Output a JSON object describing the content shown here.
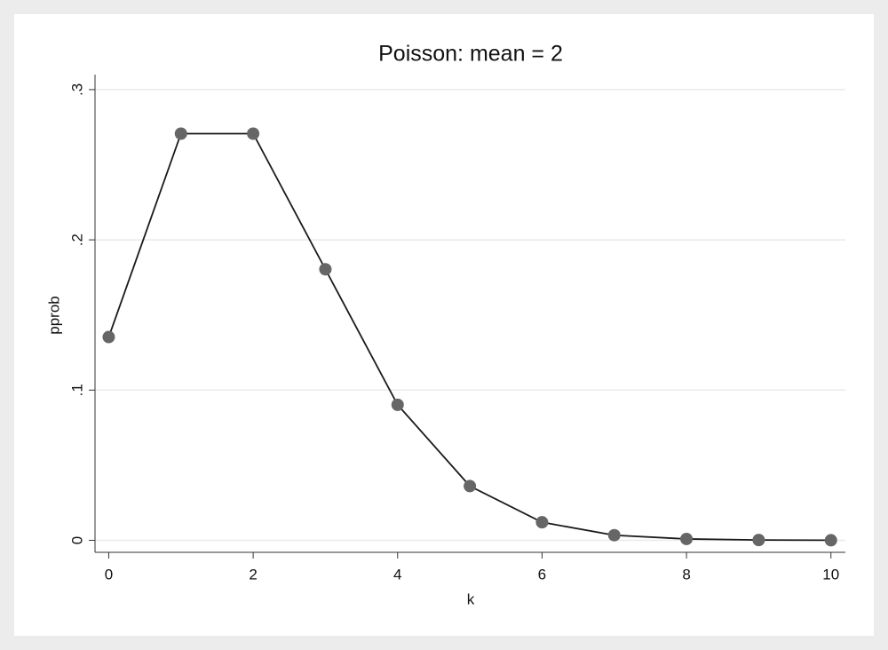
{
  "chart_data": {
    "type": "line",
    "title": "Poisson: mean = 2",
    "x_label": "k",
    "y_label": "pprob",
    "x": [
      0,
      1,
      2,
      3,
      4,
      5,
      6,
      7,
      8,
      9,
      10
    ],
    "series": [
      {
        "name": "pprob",
        "color": "#1a1a1a",
        "marker_color": "#666666",
        "values": [
          0.1353,
          0.2707,
          0.2707,
          0.1804,
          0.0902,
          0.0361,
          0.012,
          0.0034,
          0.0009,
          0.0002,
          4e-05
        ]
      }
    ],
    "xlim": [
      -0.19,
      10.2
    ],
    "ylim": [
      -0.008,
      0.31
    ],
    "xticks": [
      0,
      2,
      4,
      6,
      8,
      10
    ],
    "yticks": [
      0,
      {
        "value": 0.1,
        "label": ".1"
      },
      {
        "value": 0.2,
        "label": ".2"
      },
      {
        "value": 0.3,
        "label": ".3"
      }
    ],
    "grid": true
  }
}
